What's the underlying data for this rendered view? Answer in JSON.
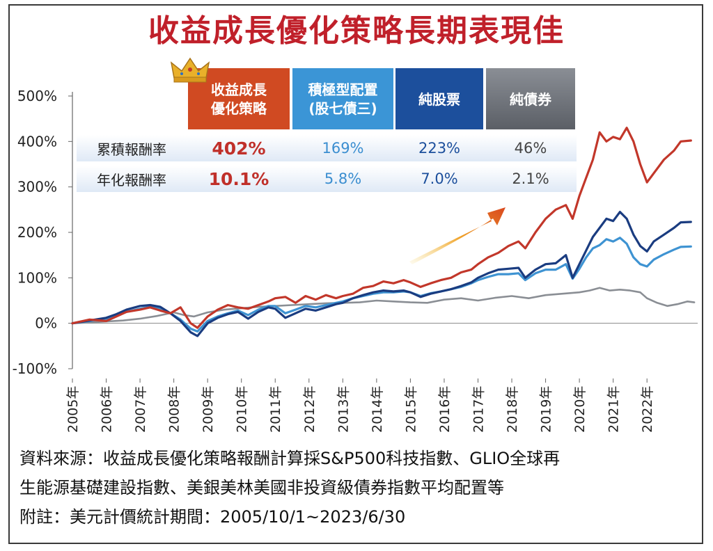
{
  "title": "收益成長優化策略長期表現佳",
  "table": {
    "headers": [
      {
        "label": "收益成長\n優化策略",
        "color": "#d04a22"
      },
      {
        "label": "積極型配置\n(股七債三)",
        "color": "#3b95d6"
      },
      {
        "label": "純股票",
        "color": "#1c4f9c"
      },
      {
        "label": "純債券",
        "color": "#6f737a"
      }
    ],
    "rows": [
      {
        "label": "累積報酬率",
        "values": [
          "402%",
          "169%",
          "223%",
          "46%"
        ]
      },
      {
        "label": "年化報酬率",
        "values": [
          "10.1%",
          "5.8%",
          "7.0%",
          "2.1%"
        ]
      }
    ],
    "value_colors": [
      "#c0302a",
      "#3b8ed0",
      "#1c4f9c",
      "#444444"
    ]
  },
  "chart_data": {
    "type": "line",
    "yticks": [
      "500%",
      "400%",
      "300%",
      "200%",
      "100%",
      "0%",
      "-100%"
    ],
    "ylim": [
      -100,
      500
    ],
    "xlabels": [
      "2005年",
      "2006年",
      "2007年",
      "2008年",
      "2009年",
      "2010年",
      "2011年",
      "2012年",
      "2013年",
      "2014年",
      "2015年",
      "2016年",
      "2017年",
      "2018年",
      "2019年",
      "2020年",
      "2021年",
      "2022年"
    ],
    "xlim": [
      2005.0,
      2023.5
    ],
    "series": [
      {
        "color": "#c2372a",
        "x": [
          2005.0,
          2005.5,
          2006.0,
          2006.3,
          2006.6,
          2007.0,
          2007.3,
          2007.6,
          2007.9,
          2008.2,
          2008.5,
          2008.7,
          2009.0,
          2009.3,
          2009.6,
          2009.9,
          2010.2,
          2010.5,
          2010.8,
          2011.0,
          2011.3,
          2011.6,
          2011.9,
          2012.2,
          2012.5,
          2012.8,
          2013.0,
          2013.3,
          2013.6,
          2013.9,
          2014.2,
          2014.5,
          2014.8,
          2015.0,
          2015.3,
          2015.6,
          2015.9,
          2016.2,
          2016.5,
          2016.8,
          2017.0,
          2017.3,
          2017.6,
          2017.9,
          2018.2,
          2018.4,
          2018.7,
          2019.0,
          2019.3,
          2019.6,
          2019.8,
          2020.0,
          2020.2,
          2020.4,
          2020.6,
          2020.8,
          2021.0,
          2021.2,
          2021.4,
          2021.6,
          2021.8,
          2022.0,
          2022.2,
          2022.5,
          2022.8,
          2023.0,
          2023.3
        ],
        "values": [
          0,
          8,
          5,
          15,
          25,
          30,
          35,
          28,
          22,
          35,
          0,
          -10,
          15,
          30,
          40,
          35,
          32,
          40,
          48,
          55,
          58,
          45,
          60,
          52,
          62,
          55,
          60,
          65,
          78,
          82,
          92,
          88,
          95,
          90,
          80,
          88,
          95,
          100,
          112,
          118,
          130,
          145,
          155,
          170,
          180,
          165,
          200,
          230,
          250,
          260,
          230,
          280,
          320,
          360,
          420,
          400,
          410,
          405,
          430,
          400,
          350,
          310,
          330,
          360,
          380,
          400,
          402
        ]
      },
      {
        "color": "#1a3c80",
        "x": [
          2005.0,
          2005.5,
          2006.0,
          2006.3,
          2006.6,
          2007.0,
          2007.3,
          2007.6,
          2007.9,
          2008.2,
          2008.5,
          2008.7,
          2009.0,
          2009.3,
          2009.6,
          2009.9,
          2010.2,
          2010.5,
          2010.8,
          2011.0,
          2011.3,
          2011.6,
          2011.9,
          2012.2,
          2012.5,
          2012.8,
          2013.0,
          2013.3,
          2013.6,
          2013.9,
          2014.2,
          2014.5,
          2014.8,
          2015.0,
          2015.3,
          2015.6,
          2015.9,
          2016.2,
          2016.5,
          2016.8,
          2017.0,
          2017.3,
          2017.6,
          2017.9,
          2018.2,
          2018.4,
          2018.7,
          2019.0,
          2019.3,
          2019.6,
          2019.8,
          2020.0,
          2020.2,
          2020.4,
          2020.6,
          2020.8,
          2021.0,
          2021.2,
          2021.4,
          2021.6,
          2021.8,
          2022.0,
          2022.2,
          2022.5,
          2022.8,
          2023.0,
          2023.3
        ],
        "values": [
          0,
          6,
          12,
          20,
          30,
          38,
          40,
          36,
          22,
          5,
          -20,
          -28,
          0,
          12,
          20,
          25,
          10,
          25,
          35,
          32,
          12,
          22,
          32,
          28,
          35,
          42,
          45,
          55,
          62,
          68,
          72,
          70,
          72,
          68,
          58,
          65,
          70,
          75,
          82,
          90,
          100,
          110,
          118,
          120,
          122,
          100,
          118,
          130,
          132,
          150,
          100,
          130,
          160,
          190,
          210,
          230,
          225,
          245,
          230,
          195,
          170,
          158,
          180,
          195,
          210,
          222,
          223
        ]
      },
      {
        "color": "#3e93d2",
        "x": [
          2005.0,
          2005.5,
          2006.0,
          2006.3,
          2006.6,
          2007.0,
          2007.3,
          2007.6,
          2007.9,
          2008.2,
          2008.5,
          2008.7,
          2009.0,
          2009.3,
          2009.6,
          2009.9,
          2010.2,
          2010.5,
          2010.8,
          2011.0,
          2011.3,
          2011.6,
          2011.9,
          2012.2,
          2012.5,
          2012.8,
          2013.0,
          2013.3,
          2013.6,
          2013.9,
          2014.2,
          2014.5,
          2014.8,
          2015.0,
          2015.3,
          2015.6,
          2015.9,
          2016.2,
          2016.5,
          2016.8,
          2017.0,
          2017.3,
          2017.6,
          2017.9,
          2018.2,
          2018.4,
          2018.7,
          2019.0,
          2019.3,
          2019.6,
          2019.8,
          2020.0,
          2020.2,
          2020.4,
          2020.6,
          2020.8,
          2021.0,
          2021.2,
          2021.4,
          2021.6,
          2021.8,
          2022.0,
          2022.2,
          2022.5,
          2022.8,
          2023.0,
          2023.3
        ],
        "values": [
          0,
          5,
          10,
          18,
          25,
          32,
          36,
          32,
          22,
          8,
          -12,
          -18,
          5,
          15,
          22,
          28,
          18,
          30,
          38,
          38,
          22,
          30,
          38,
          35,
          40,
          45,
          48,
          55,
          60,
          65,
          68,
          68,
          70,
          68,
          60,
          66,
          70,
          75,
          80,
          88,
          95,
          102,
          108,
          108,
          110,
          95,
          110,
          118,
          118,
          130,
          98,
          120,
          145,
          165,
          172,
          185,
          180,
          188,
          175,
          145,
          130,
          125,
          140,
          152,
          162,
          168,
          169
        ]
      },
      {
        "color": "#8a8e94",
        "x": [
          2005.0,
          2005.5,
          2006.0,
          2006.5,
          2007.0,
          2007.5,
          2008.0,
          2008.3,
          2008.6,
          2009.0,
          2009.5,
          2010.0,
          2010.5,
          2011.0,
          2011.5,
          2012.0,
          2012.5,
          2013.0,
          2013.5,
          2014.0,
          2014.5,
          2015.0,
          2015.5,
          2016.0,
          2016.5,
          2017.0,
          2017.5,
          2018.0,
          2018.5,
          2019.0,
          2019.5,
          2020.0,
          2020.3,
          2020.6,
          2020.9,
          2021.2,
          2021.5,
          2021.8,
          2022.0,
          2022.3,
          2022.6,
          2022.9,
          2023.2,
          2023.4
        ],
        "values": [
          0,
          2,
          4,
          6,
          10,
          16,
          24,
          18,
          15,
          24,
          30,
          33,
          36,
          38,
          40,
          42,
          44,
          45,
          46,
          50,
          48,
          46,
          45,
          52,
          55,
          50,
          56,
          60,
          55,
          62,
          65,
          68,
          72,
          78,
          72,
          74,
          72,
          68,
          55,
          45,
          38,
          42,
          48,
          46
        ]
      }
    ]
  },
  "notes": [
    "資料來源：收益成長優化策略報酬計算採S&P500科技指數、GLIO全球再",
    "生能源基礎建設指數、美銀美林美國非投資級債券指數平均配置等",
    "附註：美元計價統計期間：2005/10/1~2023/6/30"
  ]
}
